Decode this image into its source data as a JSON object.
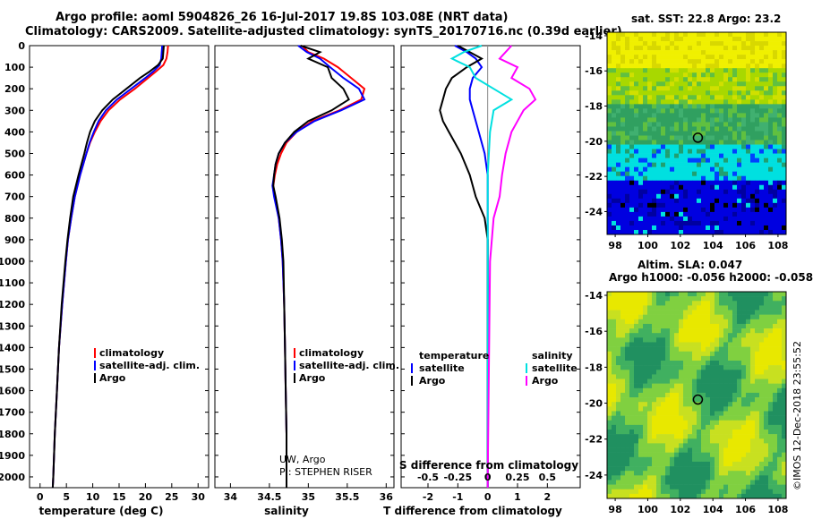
{
  "header": {
    "line1": "Argo profile: aoml 5904826_26 16-Jul-2017 19.8S 103.08E (NRT data)",
    "line2": "Climatology: CARS2009. Satellite-adjusted climatology: synTS_20170716.nc (0.39d earlier)"
  },
  "side_panels": {
    "sat_title": "sat. SST: 22.8 Argo: 23.2",
    "altim_title1": "Altim. SLA: 0.047",
    "altim_title2": "Argo h1000: -0.056 h2000: -0.058",
    "lat_ticks": [
      "-14",
      "-16",
      "-18",
      "-20",
      "-22",
      "-24"
    ],
    "lon_ticks": [
      "98",
      "100",
      "102",
      "104",
      "106",
      "108"
    ],
    "profile_marker": {
      "lon": 103.08,
      "lat": -19.8
    }
  },
  "footer": {
    "imos_stamp": "©IMOS 12-Dec-2018 23:55:52"
  },
  "colors": {
    "climatology": "#ff0000",
    "satellite_adj": "#0000ff",
    "argo": "#000000",
    "salinity_sat": "#00e0e0",
    "salinity_argo": "#ff00ff"
  },
  "chart_data": [
    {
      "type": "line",
      "xlabel": "temperature (deg C)",
      "ylim": [
        2050,
        0
      ],
      "y_ticks": [
        0,
        100,
        200,
        300,
        400,
        500,
        600,
        700,
        800,
        900,
        1000,
        1100,
        1200,
        1300,
        1400,
        1500,
        1600,
        1700,
        1800,
        1900,
        2000
      ],
      "x_ticks": [
        0,
        5,
        10,
        15,
        20,
        25,
        30
      ],
      "xlim": [
        -2,
        32
      ],
      "legend": [
        "climatology",
        "satellite-adj. clim.",
        "Argo"
      ],
      "series": [
        {
          "name": "climatology",
          "depth": [
            0,
            30,
            60,
            90,
            120,
            150,
            200,
            250,
            300,
            350,
            400,
            450,
            500,
            600,
            700,
            800,
            900,
            1000,
            1200,
            1400,
            1600,
            1800,
            2000,
            2050
          ],
          "values": [
            24.3,
            24.2,
            24.0,
            23.4,
            22.0,
            20.5,
            18.0,
            15.2,
            13.0,
            11.5,
            10.4,
            9.5,
            8.8,
            7.6,
            6.6,
            5.9,
            5.3,
            4.9,
            4.2,
            3.6,
            3.2,
            2.8,
            2.5,
            2.4
          ]
        },
        {
          "name": "satellite-adj. clim.",
          "depth": [
            0,
            30,
            60,
            90,
            120,
            150,
            200,
            250,
            300,
            350,
            400,
            450,
            500,
            600,
            700,
            800,
            900,
            1000,
            1200,
            1400,
            1600,
            1800,
            2000,
            2050
          ],
          "values": [
            23.2,
            23.1,
            23.0,
            22.7,
            21.5,
            20.0,
            17.3,
            14.6,
            12.5,
            11.1,
            10.2,
            9.4,
            8.8,
            7.6,
            6.6,
            5.9,
            5.3,
            4.9,
            4.2,
            3.6,
            3.2,
            2.8,
            2.5,
            2.4
          ]
        },
        {
          "name": "Argo",
          "depth": [
            0,
            30,
            60,
            90,
            120,
            150,
            200,
            250,
            300,
            350,
            400,
            450,
            500,
            600,
            700,
            800,
            900,
            1000,
            1200,
            1400,
            1600,
            1800,
            2000,
            2050
          ],
          "values": [
            23.5,
            23.4,
            23.3,
            22.4,
            20.8,
            19.0,
            16.4,
            13.8,
            11.8,
            10.4,
            9.5,
            8.9,
            8.4,
            7.3,
            6.3,
            5.7,
            5.2,
            4.8,
            4.1,
            3.6,
            3.2,
            2.8,
            2.5,
            2.4
          ]
        }
      ]
    },
    {
      "type": "line",
      "xlabel": "salinity",
      "ylim": [
        2050,
        0
      ],
      "x_ticks": [
        34,
        34.5,
        35,
        35.5,
        36
      ],
      "x_tick_labels": [
        "34",
        "34.5",
        "35",
        "35.5",
        "36"
      ],
      "xlim": [
        33.8,
        36.1
      ],
      "legend": [
        "climatology",
        "satellite-adj. clim.",
        "Argo"
      ],
      "credit1": "UW, Argo",
      "credit2": "PI: STEPHEN RISER",
      "series": [
        {
          "name": "climatology",
          "depth": [
            0,
            30,
            60,
            100,
            150,
            200,
            250,
            300,
            350,
            400,
            450,
            500,
            550,
            600,
            650,
            700,
            800,
            900,
            1000,
            1200,
            1400,
            1600,
            1800,
            2000,
            2050
          ],
          "values": [
            34.92,
            35.0,
            35.2,
            35.38,
            35.55,
            35.72,
            35.68,
            35.4,
            35.05,
            34.85,
            34.72,
            34.65,
            34.6,
            34.57,
            34.55,
            34.57,
            34.62,
            34.65,
            34.67,
            34.69,
            34.7,
            34.71,
            34.72,
            34.72,
            34.72
          ]
        },
        {
          "name": "satellite-adj. clim.",
          "depth": [
            0,
            30,
            60,
            100,
            150,
            200,
            250,
            300,
            350,
            400,
            450,
            500,
            550,
            600,
            650,
            700,
            800,
            900,
            1000,
            1200,
            1400,
            1600,
            1800,
            2000,
            2050
          ],
          "values": [
            34.87,
            34.98,
            35.15,
            35.28,
            35.45,
            35.65,
            35.72,
            35.42,
            35.08,
            34.85,
            34.7,
            34.62,
            34.58,
            34.56,
            34.54,
            34.56,
            34.62,
            34.65,
            34.67,
            34.69,
            34.7,
            34.71,
            34.72,
            34.72,
            34.72
          ]
        },
        {
          "name": "Argo",
          "depth": [
            0,
            30,
            60,
            100,
            150,
            200,
            250,
            300,
            350,
            400,
            450,
            500,
            550,
            600,
            650,
            700,
            800,
            900,
            1000,
            1200,
            1400,
            1600,
            1800,
            2000,
            2050
          ],
          "values": [
            34.9,
            35.15,
            35.0,
            35.25,
            35.3,
            35.45,
            35.52,
            35.3,
            35.0,
            34.82,
            34.7,
            34.62,
            34.58,
            34.56,
            34.55,
            34.58,
            34.63,
            34.66,
            34.68,
            34.69,
            34.7,
            34.71,
            34.72,
            34.72,
            34.72
          ]
        }
      ]
    },
    {
      "type": "line",
      "xlabel": "T difference from climatology",
      "xlabel_top": "S difference from climatology",
      "ylim": [
        2050,
        0
      ],
      "x_ticks": [
        -2,
        -1,
        0,
        1,
        2
      ],
      "x_tick_labels": [
        "-2",
        "-1",
        "0",
        "1",
        "2"
      ],
      "s_ticks": [
        "-0.5",
        "-0.25",
        "0",
        "0.25",
        "0.5"
      ],
      "xlim": [
        -2.9,
        3.1
      ],
      "legend_left_title": "temperature",
      "legend_right_title": "salinity",
      "legend_left": [
        "satellite",
        "Argo"
      ],
      "legend_right": [
        "satellite",
        "Argo"
      ],
      "series": [
        {
          "name": "T satellite",
          "depth": [
            0,
            30,
            60,
            100,
            150,
            200,
            250,
            300,
            400,
            500,
            600,
            700,
            800,
            1000,
            1500,
            2000,
            2050
          ],
          "values": [
            -1.1,
            -0.7,
            -0.4,
            -0.2,
            -0.5,
            -0.6,
            -0.6,
            -0.5,
            -0.3,
            -0.1,
            0,
            0,
            0,
            0,
            0,
            0,
            0
          ]
        },
        {
          "name": "T Argo",
          "depth": [
            0,
            30,
            60,
            100,
            150,
            200,
            250,
            300,
            350,
            400,
            450,
            500,
            550,
            600,
            650,
            700,
            750,
            800,
            900,
            1000,
            1500,
            2000,
            2050
          ],
          "values": [
            -1.0,
            -0.6,
            -0.2,
            -0.7,
            -1.2,
            -1.4,
            -1.5,
            -1.6,
            -1.5,
            -1.3,
            -1.1,
            -0.9,
            -0.75,
            -0.6,
            -0.5,
            -0.4,
            -0.25,
            -0.1,
            0,
            0,
            0,
            0,
            0
          ]
        },
        {
          "name": "S satellite",
          "depth": [
            0,
            30,
            60,
            100,
            150,
            200,
            250,
            300,
            400,
            500,
            600,
            700,
            800,
            1000,
            1500,
            2000,
            2050
          ],
          "values": [
            -0.05,
            -0.2,
            -0.3,
            -0.15,
            -0.1,
            0.05,
            0.2,
            0.05,
            0.02,
            0.01,
            0,
            0,
            0,
            0,
            0,
            0,
            0
          ]
        },
        {
          "name": "S Argo",
          "depth": [
            0,
            30,
            60,
            100,
            150,
            200,
            250,
            300,
            350,
            400,
            500,
            600,
            700,
            800,
            1000,
            1500,
            2000,
            2050
          ],
          "values": [
            0.2,
            0.15,
            0.1,
            0.25,
            0.2,
            0.35,
            0.4,
            0.3,
            0.25,
            0.2,
            0.15,
            0.12,
            0.1,
            0.05,
            0.02,
            0.01,
            0,
            0
          ]
        }
      ]
    }
  ]
}
